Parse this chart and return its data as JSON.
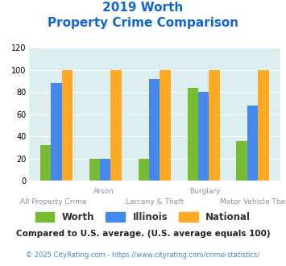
{
  "title_line1": "2019 Worth",
  "title_line2": "Property Crime Comparison",
  "categories": [
    "All Property Crime",
    "Arson",
    "Larceny & Theft",
    "Burglary",
    "Motor Vehicle Theft"
  ],
  "worth": [
    32,
    20,
    20,
    84,
    36
  ],
  "illinois": [
    88,
    20,
    92,
    80,
    68
  ],
  "national": [
    100,
    100,
    100,
    100,
    100
  ],
  "worth_color": "#77bb33",
  "illinois_color": "#4488ee",
  "national_color": "#ffaa22",
  "bg_color": "#ddeef0",
  "ylim": [
    0,
    120
  ],
  "yticks": [
    0,
    20,
    40,
    60,
    80,
    100,
    120
  ],
  "xlabel_top": [
    "",
    "Arson",
    "",
    "Burglary",
    ""
  ],
  "xlabel_bottom": [
    "All Property Crime",
    "",
    "Larceny & Theft",
    "",
    "Motor Vehicle Theft"
  ],
  "legend_labels": [
    "Worth",
    "Illinois",
    "National"
  ],
  "footnote1": "Compared to U.S. average. (U.S. average equals 100)",
  "footnote2": "© 2025 CityRating.com - https://www.cityrating.com/crime-statistics/",
  "title_color": "#1166cc",
  "xlabel_color": "#9988aa",
  "footnote1_color": "#222222",
  "footnote2_color": "#4488cc",
  "legend_text_color": "#333333"
}
